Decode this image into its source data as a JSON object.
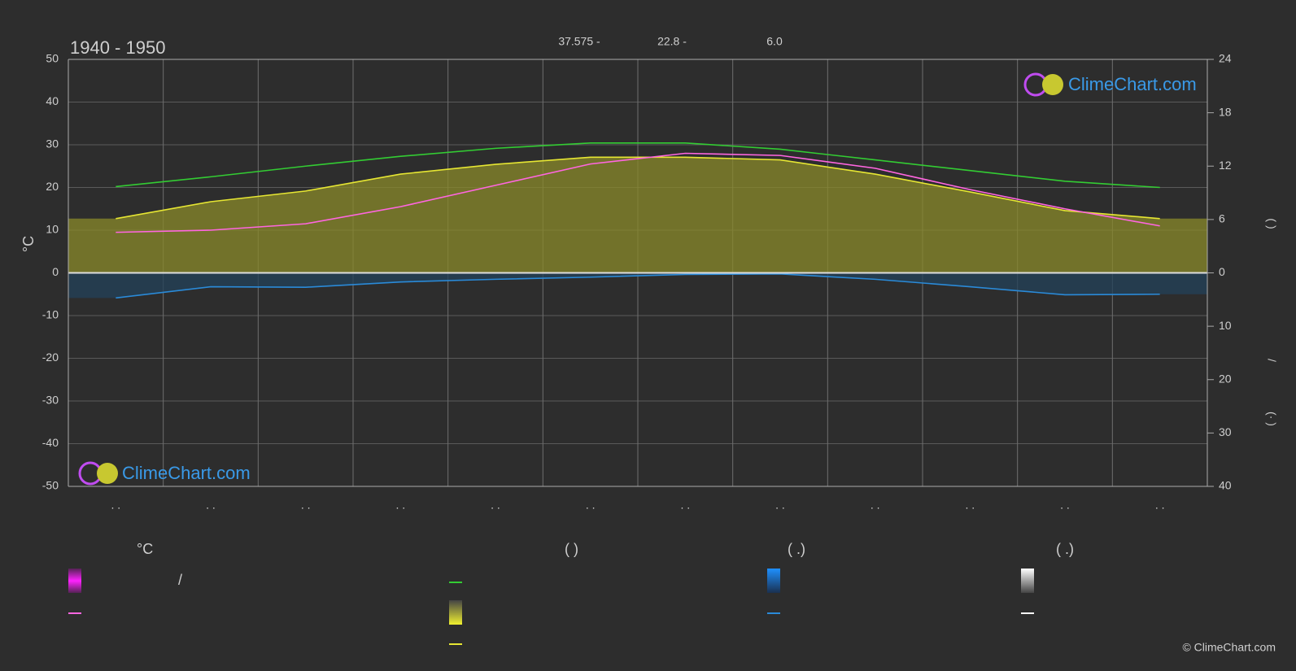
{
  "chart_data": {
    "type": "line",
    "title": "1940 - 1950",
    "top_labels": [
      "37.575 -",
      "22.8 -",
      "6.0"
    ],
    "ylabel": "°C",
    "y2label": "(   )",
    "y2slash": "/",
    "y3label": "(·   )",
    "categories": [
      ". .",
      ". .",
      ". .",
      ". .",
      ". .",
      ". .",
      ". .",
      ". .",
      ". .",
      ". .",
      ". .",
      ". ."
    ],
    "ylim": [
      -50,
      50
    ],
    "yticks": [
      -50,
      -40,
      -30,
      -20,
      -10,
      0,
      10,
      20,
      30,
      40,
      50
    ],
    "y2lim": [
      0,
      24
    ],
    "y2ticks": [
      0,
      6,
      12,
      18,
      24
    ],
    "y3lim": [
      0,
      40
    ],
    "y3ticks": [
      10,
      20,
      30,
      40
    ],
    "grid": true,
    "series": [
      {
        "color": "#33cc33",
        "axis": "y2",
        "values": [
          9.7,
          10.8,
          12.0,
          13.1,
          14.0,
          14.6,
          14.6,
          13.9,
          12.7,
          11.5,
          10.3,
          9.6
        ]
      },
      {
        "color": "#e6e633",
        "axis": "y2",
        "fill": "#8a8a2a",
        "values": [
          6.1,
          8.0,
          9.2,
          11.1,
          12.2,
          13.0,
          13.0,
          12.7,
          11.1,
          9.1,
          7.0,
          6.1
        ]
      },
      {
        "color": "#ff66e0",
        "axis": "y",
        "values": [
          9.5,
          10,
          11.5,
          15.5,
          20.5,
          25.5,
          28,
          27.5,
          24.5,
          19.5,
          15,
          11
        ]
      },
      {
        "color": "#2a8ad8",
        "axis": "y3",
        "fill": "#23425a",
        "values": [
          4.7,
          2.6,
          2.7,
          1.7,
          1.2,
          0.8,
          0.3,
          0.2,
          1.2,
          2.6,
          4.1,
          4.0
        ]
      }
    ],
    "legend": {
      "headers": [
        "°C",
        "(          )",
        "(   .)",
        "(   .)"
      ],
      "slash": "/"
    },
    "logo": "ClimeChart.com",
    "copyright": "© ClimeChart.com"
  }
}
